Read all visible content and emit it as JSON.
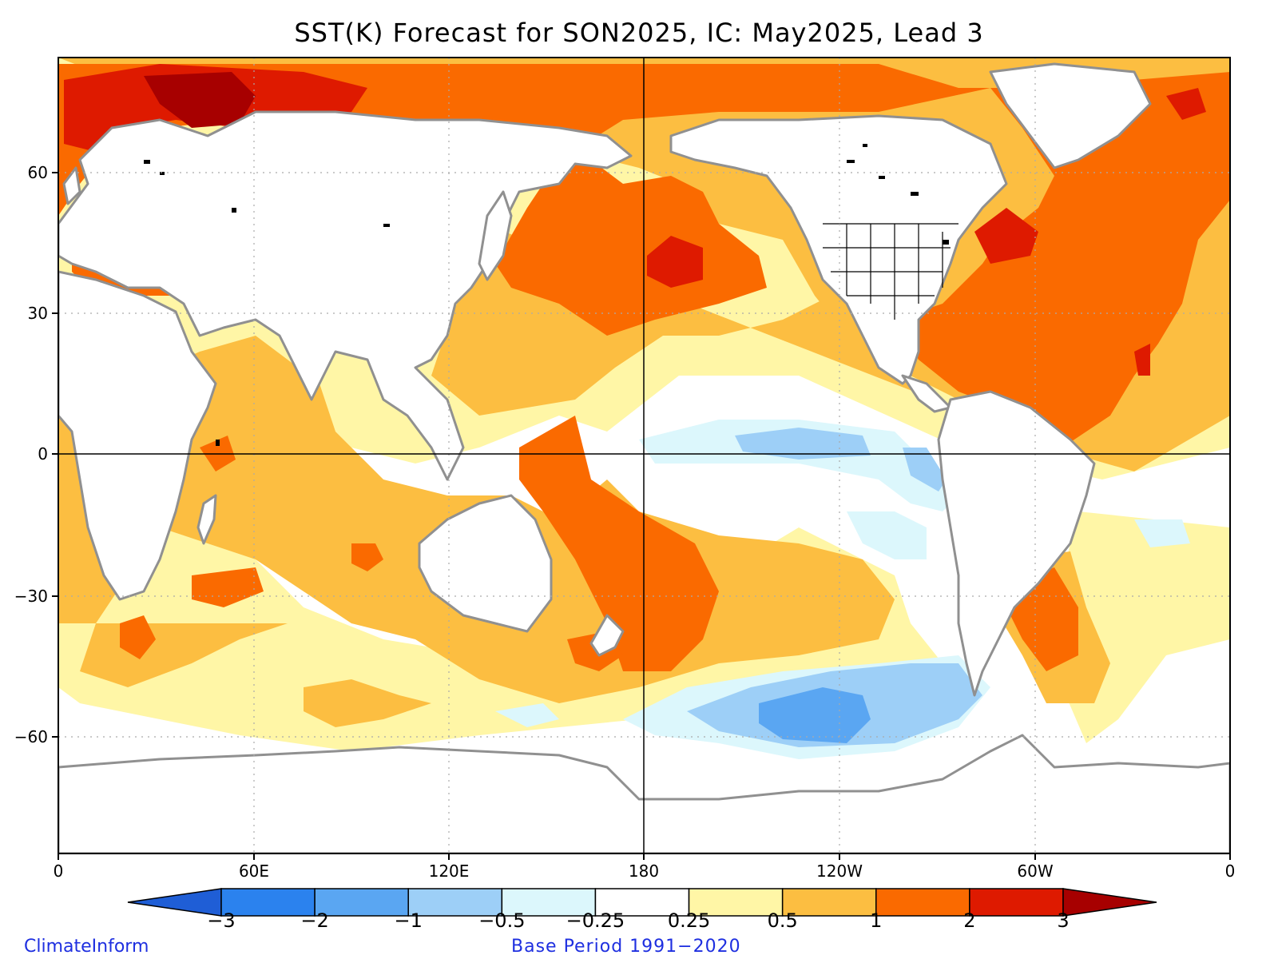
{
  "title": "SST(K) Forecast for SON2025, IC: May2025, Lead 3",
  "y_ticks": [
    "60",
    "30",
    "0",
    "−30",
    "−60"
  ],
  "x_ticks": [
    "0",
    "60E",
    "120E",
    "180",
    "120W",
    "60W",
    "0"
  ],
  "colorbar": {
    "labels": [
      "−3",
      "−2",
      "−1",
      "−0.5",
      "−0.25",
      "0.25",
      "0.5",
      "1",
      "2",
      "3"
    ],
    "colors": [
      "#1f5ed6",
      "#2b82ee",
      "#5aa6f2",
      "#9dcff7",
      "#dcf7fc",
      "#ffffff",
      "#fff6a6",
      "#fcbe41",
      "#fa6a00",
      "#de1a00",
      "#a70000"
    ]
  },
  "colors": {
    "land": "#ffffff",
    "coast": "#909090",
    "grid": "#aaaaaa",
    "lakes": "#000000"
  },
  "credit": "ClimateInform",
  "base_period": "Base Period 1991−2020"
}
